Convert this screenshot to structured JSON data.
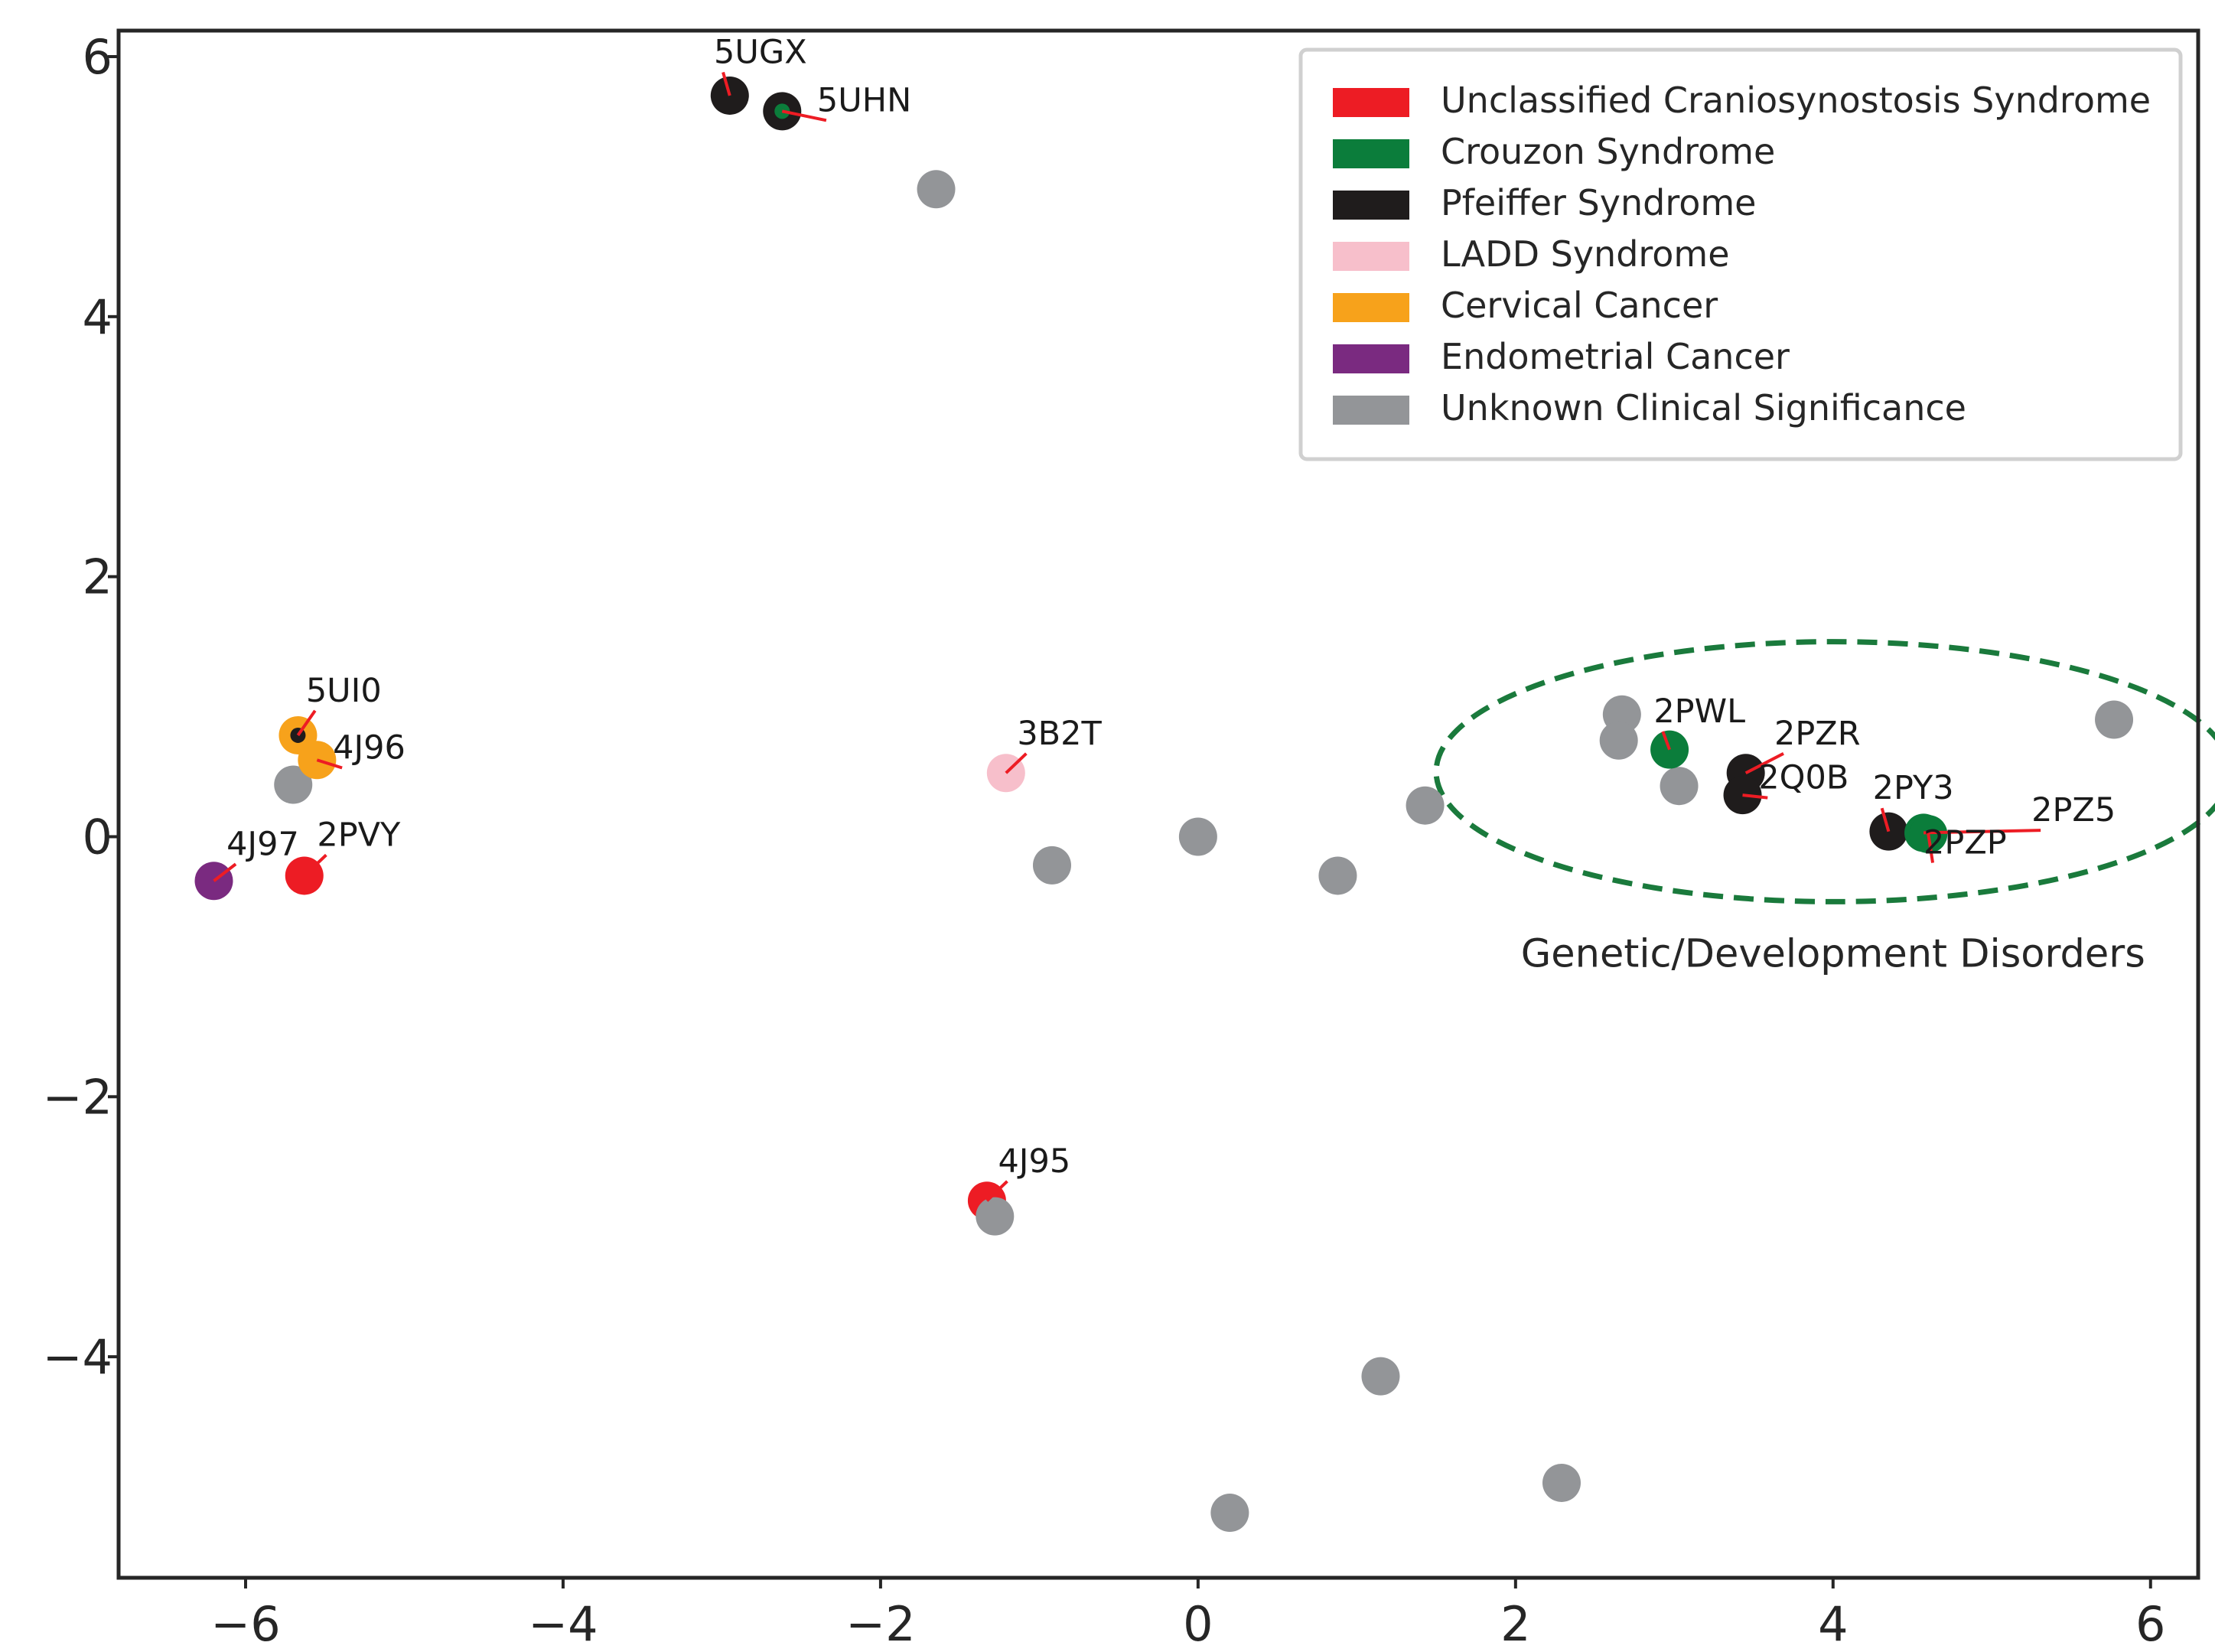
{
  "chart_data": {
    "type": "scatter",
    "title": "",
    "xlabel": "",
    "ylabel": "",
    "xlim": [
      -6.8,
      6.3
    ],
    "ylim": [
      -5.7,
      6.2
    ],
    "xticks": [
      -6,
      -4,
      -2,
      0,
      2,
      4,
      6
    ],
    "yticks": [
      -4,
      -2,
      0,
      2,
      4,
      6
    ],
    "xtick_labels": [
      "−6",
      "−4",
      "−2",
      "0",
      "2",
      "4",
      "6"
    ],
    "ytick_labels": [
      "−4",
      "−2",
      "0",
      "2",
      "4",
      "6"
    ],
    "grid": false,
    "legend_position": "top-right",
    "categories": [
      {
        "key": "ucs",
        "name": "Unclassified Craniosynostosis Syndrome",
        "color": "#ed1c24"
      },
      {
        "key": "crouzon",
        "name": "Crouzon Syndrome",
        "color": "#0b7d3b"
      },
      {
        "key": "pfeiffer",
        "name": "Pfeiffer Syndrome",
        "color": "#1f1c1c"
      },
      {
        "key": "ladd",
        "name": "LADD Syndrome",
        "color": "#f7bfcb"
      },
      {
        "key": "cervical",
        "name": "Cervical Cancer",
        "color": "#f7a21b"
      },
      {
        "key": "endometrial",
        "name": "Endometrial Cancer",
        "color": "#7a2a80"
      },
      {
        "key": "unknown",
        "name": "Unknown Clinical Significance",
        "color": "#939598"
      }
    ],
    "points": [
      {
        "x": -1.65,
        "y": 4.98,
        "category": "unknown"
      },
      {
        "x": -5.7,
        "y": 0.4,
        "category": "unknown"
      },
      {
        "x": -0.92,
        "y": -0.22,
        "category": "unknown"
      },
      {
        "x": 0.0,
        "y": 0.0,
        "category": "unknown"
      },
      {
        "x": 0.88,
        "y": -0.3,
        "category": "unknown"
      },
      {
        "x": 1.43,
        "y": 0.24,
        "category": "unknown"
      },
      {
        "x": 2.67,
        "y": 0.94,
        "category": "unknown"
      },
      {
        "x": 2.65,
        "y": 0.74,
        "category": "unknown"
      },
      {
        "x": 3.03,
        "y": 0.39,
        "category": "unknown"
      },
      {
        "x": 5.77,
        "y": 0.9,
        "category": "unknown"
      },
      {
        "x": 1.15,
        "y": -4.15,
        "category": "unknown"
      },
      {
        "x": 0.2,
        "y": -5.2,
        "category": "unknown"
      },
      {
        "x": 2.29,
        "y": -4.97,
        "category": "unknown"
      },
      {
        "x": -2.95,
        "y": 5.7,
        "category": "pfeiffer",
        "label": "5UGX"
      },
      {
        "x": -2.62,
        "y": 5.58,
        "category": "pfeiffer",
        "inner": "crouzon",
        "label": "5UHN"
      },
      {
        "x": -5.67,
        "y": 0.78,
        "category": "cervical",
        "inner": "pfeiffer",
        "label": "5UI0"
      },
      {
        "x": -5.55,
        "y": 0.59,
        "category": "cervical",
        "label": "4J96"
      },
      {
        "x": -6.2,
        "y": -0.34,
        "category": "endometrial",
        "label": "4J97"
      },
      {
        "x": -5.63,
        "y": -0.3,
        "category": "ucs",
        "label": "2PVY"
      },
      {
        "x": -1.21,
        "y": 0.49,
        "category": "ladd",
        "label": "3B2T"
      },
      {
        "x": -1.33,
        "y": -2.8,
        "category": "ucs",
        "label": "4J95"
      },
      {
        "x": -1.28,
        "y": -2.92,
        "category": "unknown"
      },
      {
        "x": 2.97,
        "y": 0.67,
        "category": "crouzon",
        "label": "2PWL"
      },
      {
        "x": 3.45,
        "y": 0.49,
        "category": "pfeiffer",
        "label": "2PZR"
      },
      {
        "x": 3.43,
        "y": 0.32,
        "category": "pfeiffer",
        "label": "2Q0B"
      },
      {
        "x": 4.35,
        "y": 0.04,
        "category": "pfeiffer",
        "label": "2PY3"
      },
      {
        "x": 4.57,
        "y": 0.03,
        "category": "crouzon",
        "label": "2PZ5"
      },
      {
        "x": 4.6,
        "y": 0.02,
        "category": "crouzon",
        "label": "2PZP"
      }
    ],
    "annotations": [
      {
        "text": "5UGX",
        "x": -2.95,
        "y": 5.7,
        "tx": -3.05,
        "ty": 5.95,
        "anchor": "start"
      },
      {
        "text": "5UHN",
        "x": -2.62,
        "y": 5.58,
        "tx": -2.4,
        "ty": 5.58,
        "anchor": "start"
      },
      {
        "text": "5UI0",
        "x": -5.67,
        "y": 0.78,
        "tx": -5.62,
        "ty": 1.04,
        "anchor": "start"
      },
      {
        "text": "4J96",
        "x": -5.55,
        "y": 0.59,
        "tx": -5.45,
        "ty": 0.6,
        "anchor": "start"
      },
      {
        "text": "4J97",
        "x": -6.2,
        "y": -0.34,
        "tx": -6.12,
        "ty": -0.14,
        "anchor": "start"
      },
      {
        "text": "2PVY",
        "x": -5.63,
        "y": -0.3,
        "tx": -5.55,
        "ty": -0.07,
        "anchor": "start"
      },
      {
        "text": "3B2T",
        "x": -1.21,
        "y": 0.49,
        "tx": -1.14,
        "ty": 0.71,
        "anchor": "start"
      },
      {
        "text": "4J95",
        "x": -1.33,
        "y": -2.8,
        "tx": -1.26,
        "ty": -2.58,
        "anchor": "start"
      },
      {
        "text": "2PWL",
        "x": 2.97,
        "y": 0.67,
        "tx": 2.87,
        "ty": 0.88,
        "anchor": "start"
      },
      {
        "text": "2PZR",
        "x": 3.45,
        "y": 0.49,
        "tx": 3.63,
        "ty": 0.71,
        "anchor": "start"
      },
      {
        "text": "2Q0B",
        "x": 3.43,
        "y": 0.32,
        "tx": 3.53,
        "ty": 0.37,
        "anchor": "start"
      },
      {
        "text": "2PY3",
        "x": 4.35,
        "y": 0.04,
        "tx": 4.25,
        "ty": 0.29,
        "anchor": "start"
      },
      {
        "text": "2PZ5",
        "x": 4.57,
        "y": 0.03,
        "tx": 5.25,
        "ty": 0.12,
        "anchor": "start"
      },
      {
        "text": "2PZP",
        "x": 4.6,
        "y": 0.02,
        "tx": 4.57,
        "ty": -0.13,
        "anchor": "start"
      }
    ],
    "region": {
      "label": "Genetic/Development Disorders",
      "cx": 4.0,
      "cy": 0.5,
      "rx": 2.5,
      "ry": 1.0,
      "color": "#1a7a3c",
      "style": "dashed"
    },
    "annotation_line_color": "#ed1c24",
    "axis_color": "#262626"
  }
}
